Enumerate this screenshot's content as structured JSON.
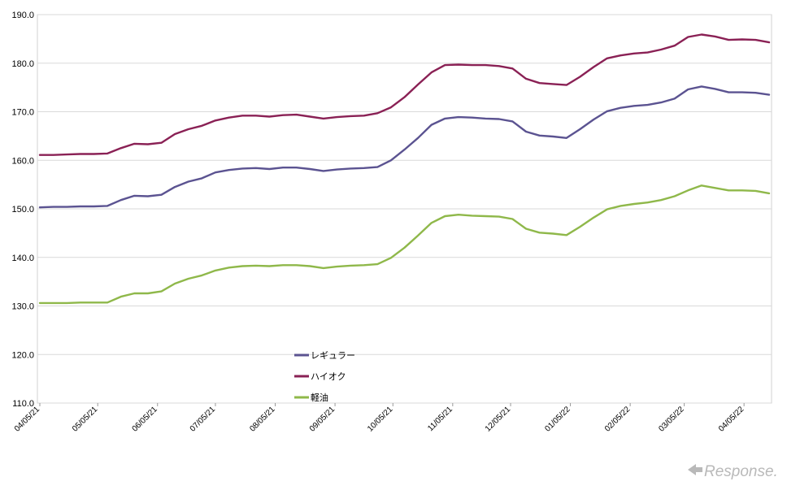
{
  "chart_data": {
    "type": "line",
    "title": "",
    "xlabel": "",
    "ylabel": "",
    "ylim": [
      110,
      190
    ],
    "yticks": [
      "110.0",
      "120.0",
      "130.0",
      "140.0",
      "150.0",
      "160.0",
      "170.0",
      "180.0",
      "190.0"
    ],
    "xticks": [
      "04/05/21",
      "05/05/21",
      "06/05/21",
      "07/05/21",
      "08/05/21",
      "09/05/21",
      "10/05/21",
      "11/05/21",
      "12/05/21",
      "01/05/22",
      "02/05/22",
      "03/05/22",
      "04/05/22"
    ],
    "grid": "horizontal",
    "legend_position": "center-bottom",
    "x": [
      "2021-04-05",
      "2021-04-12",
      "2021-04-19",
      "2021-04-26",
      "2021-05-03",
      "2021-05-10",
      "2021-05-17",
      "2021-05-24",
      "2021-05-31",
      "2021-06-07",
      "2021-06-14",
      "2021-06-21",
      "2021-06-28",
      "2021-07-05",
      "2021-07-12",
      "2021-07-19",
      "2021-07-26",
      "2021-08-02",
      "2021-08-09",
      "2021-08-16",
      "2021-08-23",
      "2021-08-30",
      "2021-09-06",
      "2021-09-13",
      "2021-09-20",
      "2021-09-27",
      "2021-10-04",
      "2021-10-11",
      "2021-10-18",
      "2021-10-25",
      "2021-11-01",
      "2021-11-08",
      "2021-11-15",
      "2021-11-22",
      "2021-11-29",
      "2021-12-06",
      "2021-12-13",
      "2021-12-20",
      "2021-12-27",
      "2022-01-03",
      "2022-01-10",
      "2022-01-17",
      "2022-01-24",
      "2022-01-31",
      "2022-02-07",
      "2022-02-14",
      "2022-02-21",
      "2022-02-28",
      "2022-03-07",
      "2022-03-14",
      "2022-03-21",
      "2022-03-28",
      "2022-04-04",
      "2022-04-11",
      "2022-04-18"
    ],
    "series": [
      {
        "name": "レギュラー",
        "color": "#5b5391",
        "values": [
          150.3,
          150.4,
          150.4,
          150.5,
          150.5,
          150.6,
          151.8,
          152.7,
          152.6,
          152.9,
          154.5,
          155.6,
          156.3,
          157.5,
          158.0,
          158.3,
          158.4,
          158.2,
          158.5,
          158.5,
          158.2,
          157.8,
          158.1,
          158.3,
          158.4,
          158.6,
          160.0,
          162.2,
          164.6,
          167.3,
          168.6,
          168.9,
          168.8,
          168.6,
          168.5,
          168.0,
          165.9,
          165.1,
          164.9,
          164.6,
          166.4,
          168.4,
          170.1,
          170.8,
          171.2,
          171.4,
          171.9,
          172.7,
          174.6,
          175.2,
          174.7,
          174.0,
          174.0,
          173.9,
          173.5
        ]
      },
      {
        "name": "ハイオク",
        "color": "#8a2155",
        "values": [
          161.1,
          161.1,
          161.2,
          161.3,
          161.3,
          161.4,
          162.5,
          163.4,
          163.3,
          163.6,
          165.4,
          166.4,
          167.1,
          168.2,
          168.8,
          169.2,
          169.2,
          169.0,
          169.3,
          169.4,
          169.0,
          168.6,
          168.9,
          169.1,
          169.2,
          169.7,
          170.9,
          173.0,
          175.6,
          178.1,
          179.6,
          179.7,
          179.6,
          179.6,
          179.4,
          178.9,
          176.8,
          175.9,
          175.7,
          175.5,
          177.2,
          179.2,
          181.0,
          181.6,
          182.0,
          182.2,
          182.8,
          183.6,
          185.4,
          185.9,
          185.5,
          184.8,
          184.9,
          184.8,
          184.3
        ]
      },
      {
        "name": "軽油",
        "color": "#8fb84a",
        "values": [
          130.6,
          130.6,
          130.6,
          130.7,
          130.7,
          130.7,
          131.9,
          132.6,
          132.6,
          133.0,
          134.6,
          135.6,
          136.3,
          137.3,
          137.9,
          138.2,
          138.3,
          138.2,
          138.4,
          138.4,
          138.2,
          137.8,
          138.1,
          138.3,
          138.4,
          138.6,
          139.9,
          142.0,
          144.5,
          147.1,
          148.5,
          148.8,
          148.6,
          148.5,
          148.4,
          147.9,
          145.9,
          145.1,
          144.9,
          144.6,
          146.3,
          148.2,
          149.9,
          150.6,
          151.0,
          151.3,
          151.8,
          152.6,
          153.8,
          154.8,
          154.3,
          153.8,
          153.8,
          153.7,
          153.2
        ]
      }
    ]
  },
  "watermark": "Response."
}
